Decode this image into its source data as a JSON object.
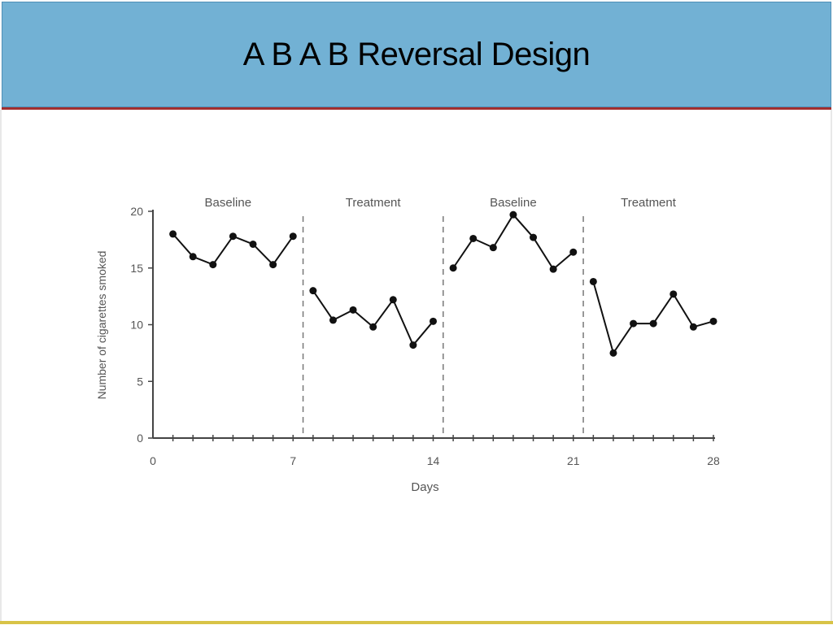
{
  "slide": {
    "title": "A B A B Reversal Design"
  },
  "colors": {
    "title_bar": "#72b1d4",
    "title_rule": "#a22f2f",
    "bottom_rule": "#d8c347",
    "data_line": "#111111"
  },
  "chart_data": {
    "type": "line",
    "xlabel": "Days",
    "ylabel": "Number of cigarettes smoked",
    "xlim": [
      0,
      28
    ],
    "ylim": [
      0,
      20
    ],
    "x_ticks": [
      0,
      7,
      14,
      21,
      28
    ],
    "y_ticks": [
      0,
      5,
      10,
      15,
      20
    ],
    "grid": false,
    "phases": [
      {
        "label": "Baseline",
        "start": 0,
        "end": 7.5
      },
      {
        "label": "Treatment",
        "start": 7.5,
        "end": 14.5
      },
      {
        "label": "Baseline",
        "start": 14.5,
        "end": 21.5
      },
      {
        "label": "Treatment",
        "start": 21.5,
        "end": 28
      }
    ],
    "phase_dividers": [
      7.5,
      14.5,
      21.5
    ],
    "segments": [
      {
        "x": [
          1,
          2,
          3,
          4,
          5,
          6,
          7
        ],
        "y": [
          18,
          16,
          15.3,
          17.8,
          17.1,
          15.3,
          17.8
        ]
      },
      {
        "x": [
          8,
          9,
          10,
          11,
          12,
          13,
          14
        ],
        "y": [
          13,
          10.4,
          11.3,
          9.8,
          12.2,
          8.2,
          10.3
        ]
      },
      {
        "x": [
          15,
          16,
          17,
          18,
          19,
          20,
          21
        ],
        "y": [
          15,
          17.6,
          16.8,
          19.7,
          17.7,
          14.9,
          16.4
        ]
      },
      {
        "x": [
          22,
          23,
          24,
          25,
          26,
          27,
          28
        ],
        "y": [
          13.8,
          7.5,
          10.1,
          10.1,
          12.7,
          9.8,
          10.3
        ]
      }
    ]
  }
}
